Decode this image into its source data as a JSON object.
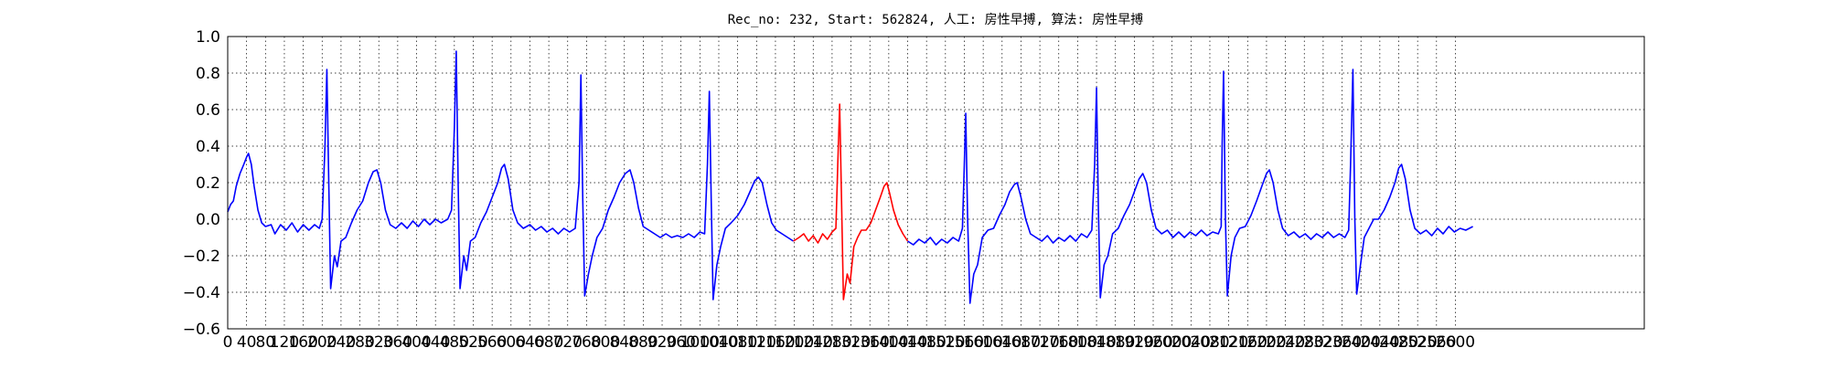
{
  "chart_data": {
    "type": "line",
    "title": "Rec_no: 232, Start: 562824, 人工: 房性早搏, 算法: 房性早搏",
    "xlim": [
      0,
      3000
    ],
    "xticks": [
      0,
      40,
      80,
      120,
      160,
      200,
      240,
      280,
      320,
      360,
      400,
      440,
      480,
      520,
      560,
      600,
      640,
      680,
      720,
      760,
      800,
      840,
      880,
      920,
      960,
      1000,
      1040,
      1080,
      1120,
      1160,
      1200,
      1240,
      1280,
      1320,
      1360,
      1400,
      1440,
      1480,
      1520,
      1560,
      1600,
      1640,
      1680,
      1720,
      1760,
      1800,
      1840,
      1880,
      1920,
      1960,
      2000,
      2040,
      2080,
      2120,
      2160,
      2200,
      2240,
      2280,
      2320,
      2360,
      2400,
      2440,
      2480,
      2520,
      2560,
      2600
    ],
    "ylim": [
      -0.6,
      1.0
    ],
    "yticks": [
      {
        "value": -0.6,
        "label": "−0.6"
      },
      {
        "value": -0.4,
        "label": "−0.4"
      },
      {
        "value": -0.2,
        "label": "−0.2"
      },
      {
        "value": 0.0,
        "label": "0.0"
      },
      0.2,
      0.4,
      0.6,
      0.8,
      {
        "value": 1.0,
        "label": "1.0"
      }
    ],
    "grid": true,
    "series": [
      {
        "color": "#0000ff",
        "x": [
          0,
          6,
          12,
          18,
          26,
          34,
          40,
          44,
          50,
          56,
          64,
          72,
          80,
          92,
          100,
          112,
          124,
          136,
          148,
          160,
          172,
          184,
          194,
          200,
          206,
          210,
          214,
          218,
          226,
          232,
          240,
          250,
          262,
          274,
          286,
          298,
          308,
          316,
          324,
          334,
          344,
          356,
          368,
          380,
          392,
          404,
          416,
          428,
          440,
          452,
          466,
          474,
          480,
          484,
          488,
          492,
          500,
          506,
          514,
          524,
          536,
          548,
          560,
          572,
          580,
          586,
          594,
          604,
          614,
          626,
          640,
          652,
          664,
          676,
          688,
          700,
          712,
          724,
          736,
          744,
          748,
          752,
          756,
          764,
          772,
          782,
          794,
          806,
          818,
          830,
          842,
          852,
          860,
          870,
          880,
          892,
          904,
          916,
          928,
          940,
          952,
          964,
          976,
          988,
          1000,
          1010,
          1016,
          1020,
          1024,
          1028,
          1036,
          1044,
          1054,
          1066,
          1080,
          1094,
          1106,
          1116,
          1124,
          1132,
          1142,
          1152,
          1162,
          1174,
          1186,
          1198,
          1300,
          1440,
          1452,
          1464,
          1476,
          1488,
          1500,
          1512,
          1524,
          1536,
          1548,
          1556,
          1560,
          1563,
          1567,
          1572,
          1580,
          1588,
          1598,
          1610,
          1622,
          1634,
          1646,
          1656,
          1666,
          1672,
          1680,
          1690,
          1700,
          1712,
          1724,
          1736,
          1748,
          1760,
          1772,
          1784,
          1796,
          1808,
          1820,
          1830,
          1836,
          1840,
          1844,
          1848,
          1856,
          1864,
          1874,
          1886,
          1898,
          1910,
          1920,
          1930,
          1938,
          1946,
          1956,
          1966,
          1978,
          1990,
          2002,
          2014,
          2026,
          2038,
          2050,
          2062,
          2074,
          2086,
          2098,
          2104,
          2106,
          2109,
          2113,
          2117,
          2125,
          2133,
          2143,
          2155,
          2167,
          2179,
          2190,
          2200,
          2206,
          2214,
          2224,
          2234,
          2246,
          2258,
          2270,
          2282,
          2294,
          2306,
          2318,
          2330,
          2342,
          2354,
          2366,
          2374,
          2378,
          2383,
          2387,
          2391,
          2399,
          2407,
          2417,
          2427,
          2437,
          2449,
          2461,
          2472,
          2480,
          2486,
          2494,
          2504,
          2514,
          2526,
          2538,
          2550,
          2562,
          2574,
          2586,
          2598,
          2610,
          2622,
          2637
        ],
        "values": [
          0.04,
          0.08,
          0.1,
          0.18,
          0.25,
          0.3,
          0.34,
          0.36,
          0.3,
          0.18,
          0.05,
          -0.02,
          -0.04,
          -0.03,
          -0.08,
          -0.03,
          -0.06,
          -0.02,
          -0.07,
          -0.03,
          -0.06,
          -0.03,
          -0.05,
          0.0,
          0.4,
          0.82,
          0.2,
          -0.38,
          -0.2,
          -0.26,
          -0.12,
          -0.1,
          -0.02,
          0.05,
          0.1,
          0.2,
          0.26,
          0.27,
          0.2,
          0.05,
          -0.03,
          -0.05,
          -0.02,
          -0.05,
          -0.01,
          -0.04,
          0.0,
          -0.03,
          0.0,
          -0.02,
          0.0,
          0.05,
          0.5,
          0.92,
          0.2,
          -0.38,
          -0.2,
          -0.28,
          -0.12,
          -0.1,
          -0.02,
          0.04,
          0.12,
          0.2,
          0.28,
          0.3,
          0.22,
          0.05,
          -0.02,
          -0.05,
          -0.03,
          -0.06,
          -0.04,
          -0.07,
          -0.05,
          -0.08,
          -0.05,
          -0.07,
          -0.05,
          0.2,
          0.79,
          0.1,
          -0.42,
          -0.3,
          -0.2,
          -0.1,
          -0.05,
          0.05,
          0.12,
          0.2,
          0.25,
          0.27,
          0.2,
          0.06,
          -0.04,
          -0.06,
          -0.08,
          -0.1,
          -0.08,
          -0.1,
          -0.09,
          -0.1,
          -0.08,
          -0.1,
          -0.07,
          -0.08,
          0.3,
          0.7,
          0.1,
          -0.44,
          -0.25,
          -0.15,
          -0.05,
          -0.02,
          0.02,
          0.08,
          0.15,
          0.21,
          0.23,
          0.2,
          0.08,
          -0.02,
          -0.06,
          -0.08,
          -0.1,
          -0.12,
          null,
          -0.12,
          -0.14,
          -0.11,
          -0.13,
          -0.1,
          -0.14,
          -0.11,
          -0.13,
          -0.1,
          -0.12,
          -0.05,
          0.3,
          0.58,
          0.0,
          -0.46,
          -0.3,
          -0.25,
          -0.1,
          -0.06,
          -0.05,
          0.02,
          0.08,
          0.15,
          0.19,
          0.2,
          0.12,
          0.0,
          -0.08,
          -0.1,
          -0.12,
          -0.09,
          -0.13,
          -0.1,
          -0.12,
          -0.09,
          -0.12,
          -0.08,
          -0.1,
          -0.06,
          0.3,
          0.72,
          0.05,
          -0.43,
          -0.25,
          -0.2,
          -0.08,
          -0.05,
          0.02,
          0.08,
          0.15,
          0.22,
          0.25,
          0.2,
          0.05,
          -0.05,
          -0.08,
          -0.06,
          -0.1,
          -0.07,
          -0.1,
          -0.07,
          -0.09,
          -0.06,
          -0.09,
          -0.07,
          -0.08,
          -0.04,
          0.4,
          0.81,
          0.0,
          -0.42,
          -0.2,
          -0.1,
          -0.05,
          -0.04,
          0.02,
          0.1,
          0.18,
          0.25,
          0.27,
          0.2,
          0.05,
          -0.05,
          -0.09,
          -0.07,
          -0.1,
          -0.08,
          -0.11,
          -0.08,
          -0.1,
          -0.07,
          -0.1,
          -0.08,
          -0.1,
          -0.06,
          0.3,
          0.82,
          0.0,
          -0.41,
          -0.25,
          -0.1,
          -0.05,
          0.0,
          0.0,
          0.05,
          0.12,
          0.2,
          0.28,
          0.3,
          0.22,
          0.05,
          -0.05,
          -0.08,
          -0.06,
          -0.09,
          -0.05,
          -0.08,
          -0.04,
          -0.07,
          -0.05,
          -0.06,
          -0.04
        ]
      },
      {
        "color": "#ff0000",
        "x": [
          1198,
          1210,
          1220,
          1230,
          1240,
          1250,
          1260,
          1270,
          1280,
          1288,
          1292,
          1296,
          1300,
          1304,
          1312,
          1318,
          1326,
          1334,
          1342,
          1352,
          1362,
          1372,
          1382,
          1390,
          1396,
          1402,
          1410,
          1420,
          1430,
          1440
        ],
        "values": [
          -0.12,
          -0.1,
          -0.08,
          -0.12,
          -0.09,
          -0.13,
          -0.08,
          -0.11,
          -0.07,
          -0.05,
          0.3,
          0.63,
          0.1,
          -0.44,
          -0.3,
          -0.35,
          -0.15,
          -0.1,
          -0.06,
          -0.06,
          -0.02,
          0.05,
          0.12,
          0.18,
          0.2,
          0.14,
          0.05,
          -0.03,
          -0.08,
          -0.12
        ]
      }
    ]
  }
}
